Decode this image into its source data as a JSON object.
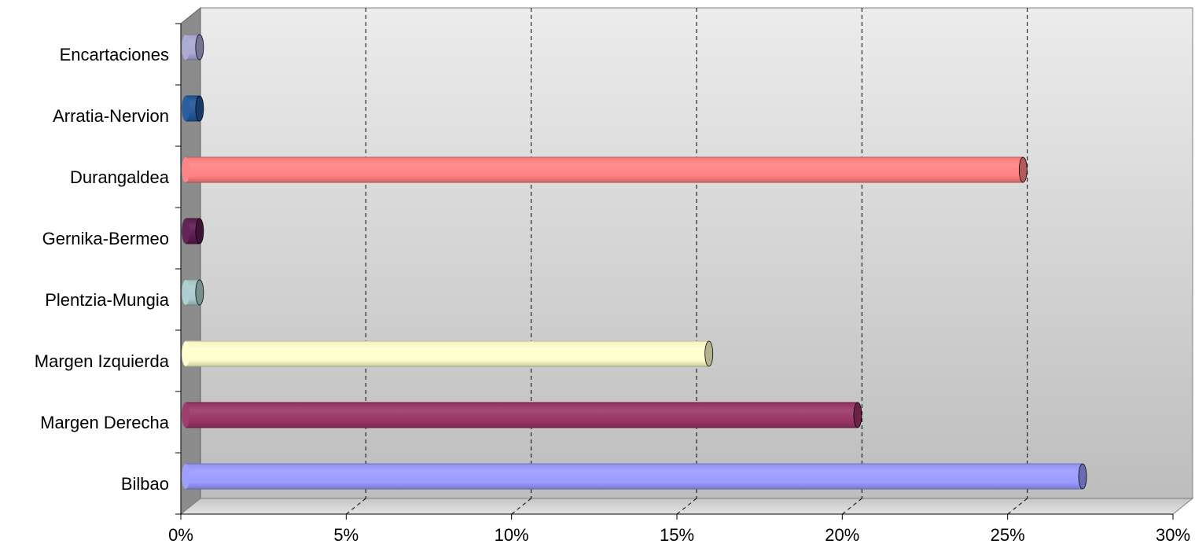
{
  "chart_data": {
    "type": "bar",
    "orientation": "horizontal",
    "style": "3d-cylinder",
    "categories": [
      "Encartaciones",
      "Arratia-Nervion",
      "Durangaldea",
      "Gernika-Bermeo",
      "Plentzia-Mungia",
      "Margen Izquierda",
      "Margen Derecha",
      "Bilbao"
    ],
    "values": [
      0.3,
      0.3,
      25.2,
      0.3,
      0.3,
      15.7,
      20.2,
      27.0
    ],
    "colors": [
      "#a9a6d3",
      "#1f5599",
      "#ff8080",
      "#5a1a4e",
      "#a8cccc",
      "#ffffcc",
      "#993366",
      "#9999ff"
    ],
    "x_ticks": [
      "0%",
      "5%",
      "10%",
      "15%",
      "20%",
      "25%",
      "30%"
    ],
    "xlim": [
      0,
      30
    ],
    "grid": "vertical-dashed",
    "legend": "none",
    "title": "",
    "xlabel": "",
    "ylabel": ""
  }
}
